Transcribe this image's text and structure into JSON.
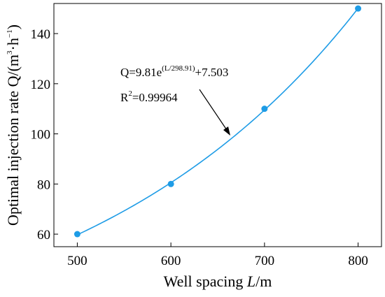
{
  "chart_data": {
    "type": "scatter",
    "xlabel_prefix": "Well spacing ",
    "xlabel_var": "L",
    "xlabel_unit": "/m",
    "ylabel_text": "Optimal injection rate Q/(m",
    "ylabel_sup1": "3",
    "ylabel_mid": "·h",
    "ylabel_sup2": "−1",
    "ylabel_end": ")",
    "xlim": [
      475,
      825
    ],
    "ylim": [
      55,
      152
    ],
    "xticks": [
      500,
      600,
      700,
      800
    ],
    "yticks": [
      60,
      80,
      100,
      120,
      140
    ],
    "x": [
      500,
      600,
      700,
      800
    ],
    "y": [
      60,
      80,
      110,
      150
    ],
    "marker_color": "#1e9ce6",
    "line_color": "#1e9ce6",
    "fit": {
      "a": 9.81,
      "b": 298.91,
      "c": 7.503
    },
    "equation_main": "Q=9.81e",
    "equation_sup": "(L/298.91)",
    "equation_tail": "+7.503",
    "r2_prefix": "R",
    "r2_sup": "2",
    "r2_value": "=0.99964"
  }
}
